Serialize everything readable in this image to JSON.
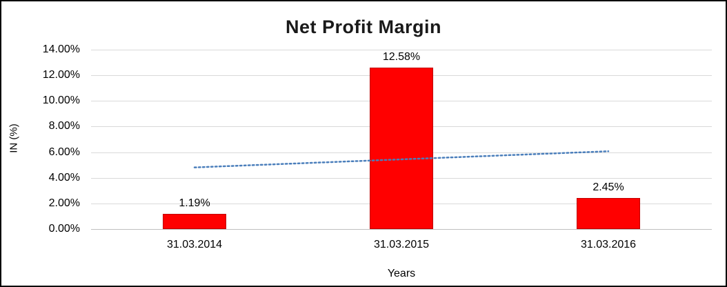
{
  "chart_data": {
    "type": "bar",
    "title": "Net Profit Margin",
    "categories": [
      "31.03.2014",
      "31.03.2015",
      "31.03.2016"
    ],
    "values": [
      1.19,
      12.58,
      2.45
    ],
    "data_labels": [
      "1.19%",
      "12.58%",
      "2.45%"
    ],
    "xlabel": "Years",
    "ylabel": "IN (%)",
    "ylim": [
      0,
      14
    ],
    "ytick_step": 2,
    "ytick_labels": [
      "0.00%",
      "2.00%",
      "4.00%",
      "6.00%",
      "8.00%",
      "10.00%",
      "12.00%",
      "14.00%"
    ],
    "grid": true,
    "legend": "none",
    "bar_color": "#ff0000",
    "bar_border_color": "#c00000",
    "trendline": {
      "type": "linear-dotted",
      "color": "#4a7ebb",
      "start_value": 4.81,
      "end_value": 6.07
    }
  }
}
